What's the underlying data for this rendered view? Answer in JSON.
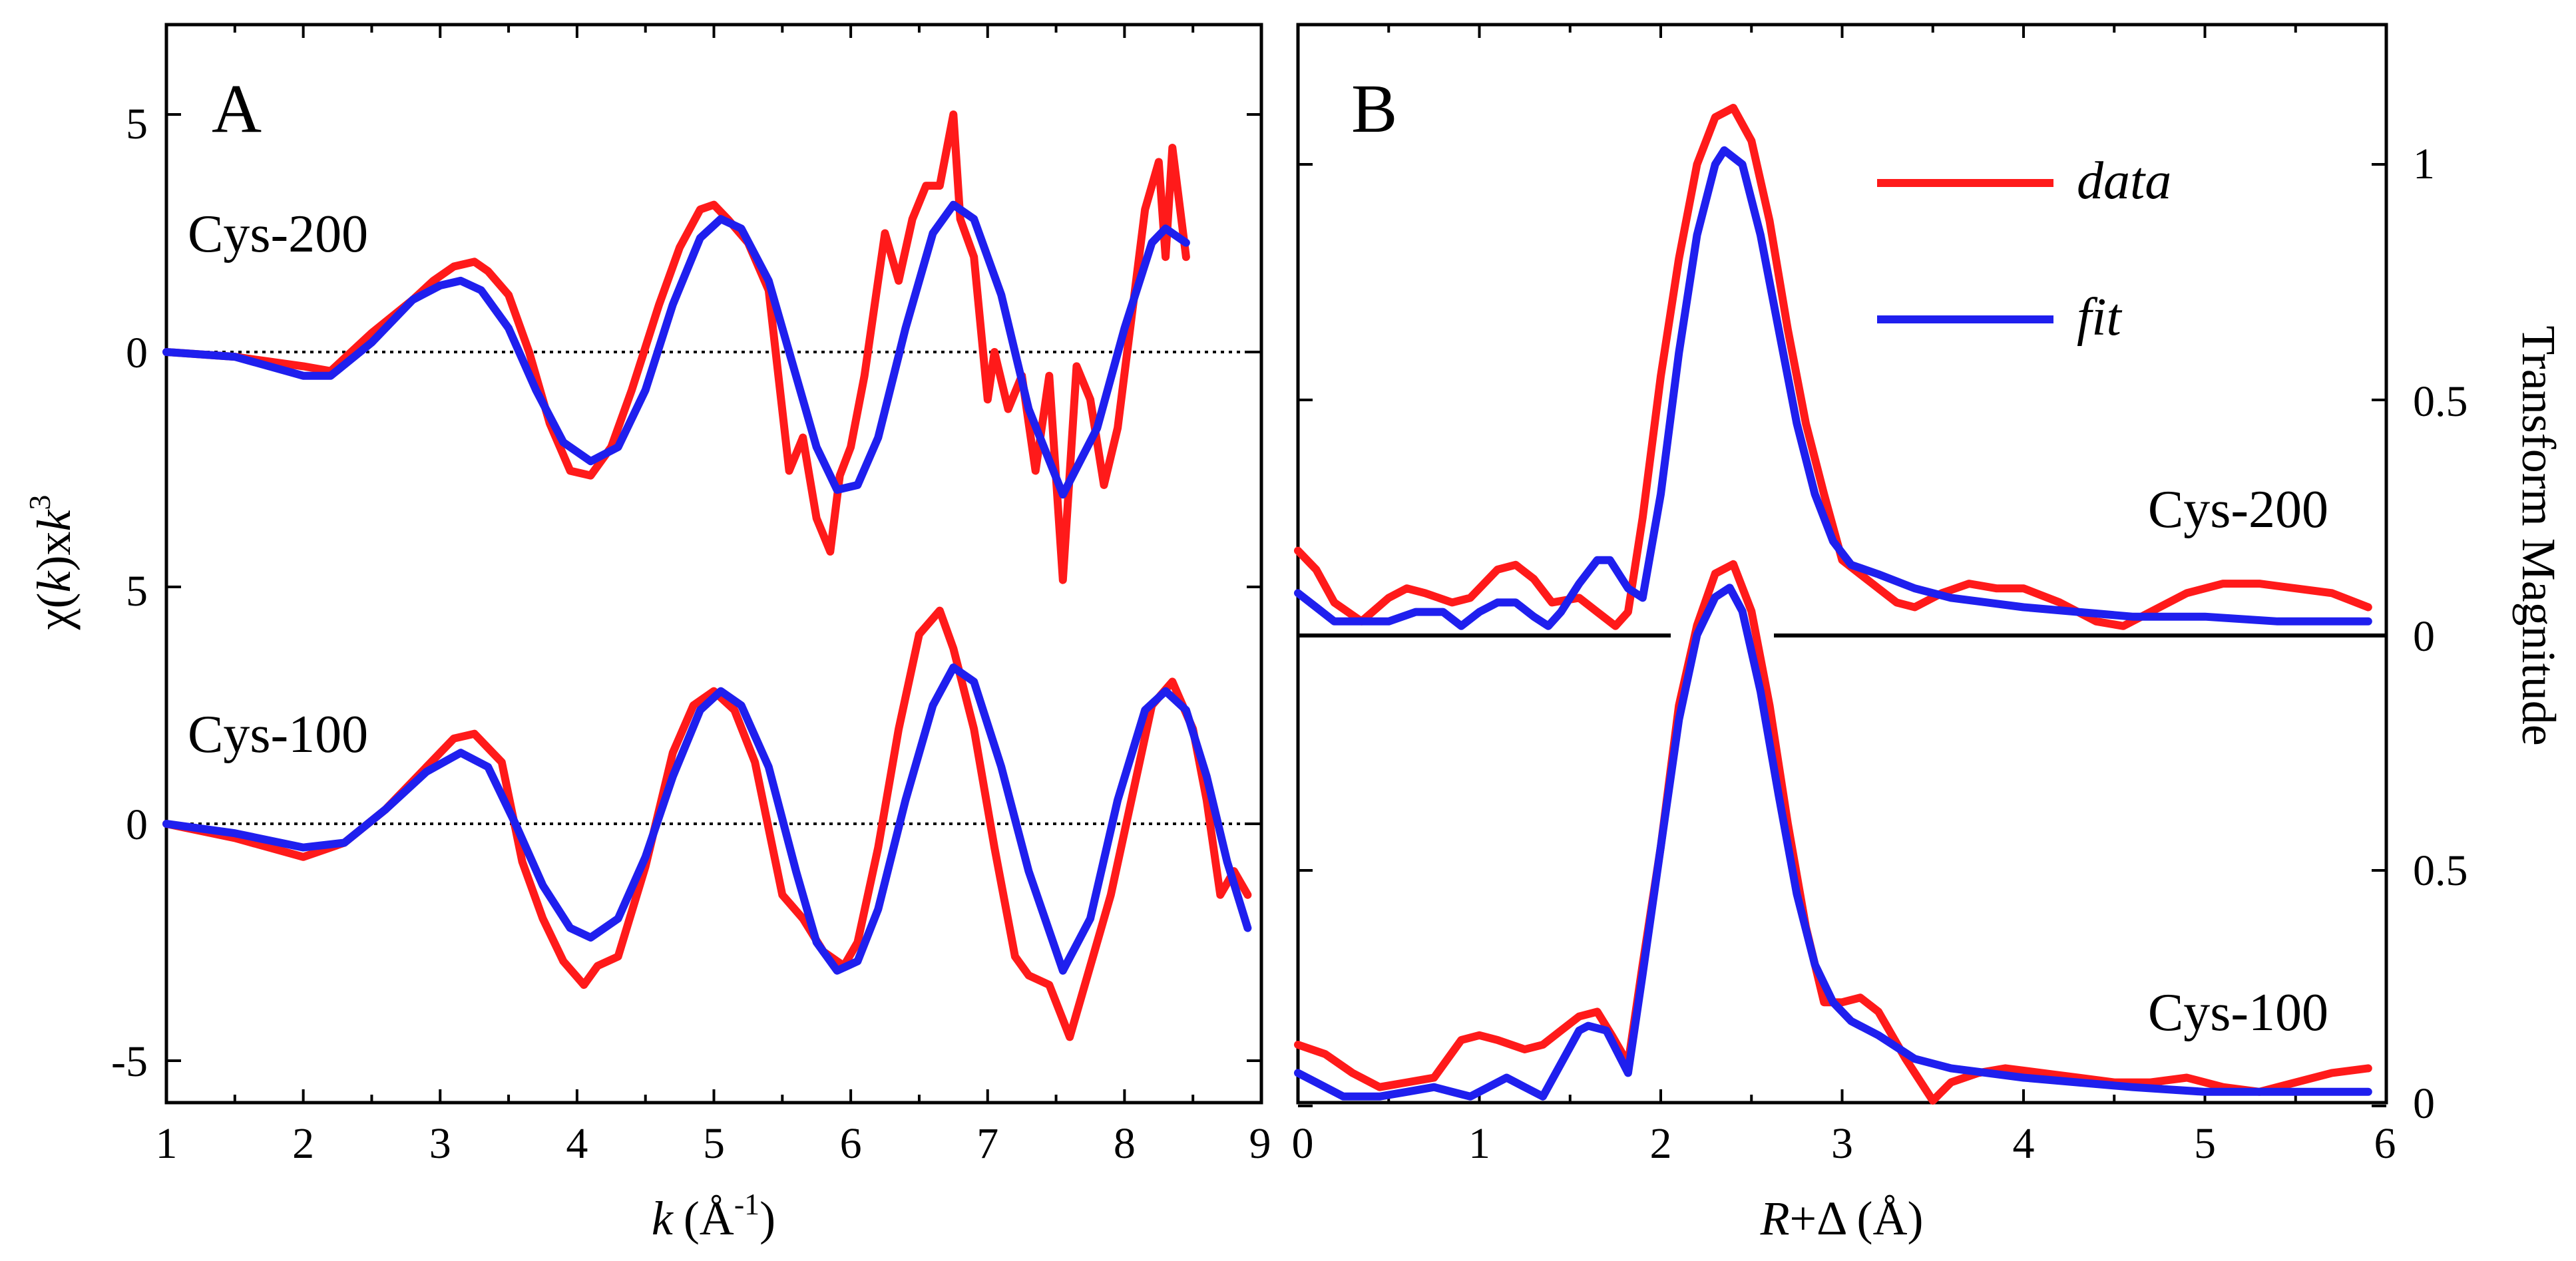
{
  "chart_data": [
    {
      "panel": "A",
      "type": "line",
      "panel_label": "A",
      "xlabel_prefix": "k",
      "xlabel_suffix": "(Å",
      "xlabel_exp": "-1",
      "xlabel_close": ")",
      "ylabel_chi": "χ(",
      "ylabel_k": "k",
      "ylabel_mid": ")x",
      "ylabel_k2": "k",
      "ylabel_exp": "3",
      "xlim": [
        1,
        9
      ],
      "x_ticks": [
        "1",
        "2",
        "3",
        "4",
        "5",
        "6",
        "7",
        "8",
        "9"
      ],
      "tracks": [
        {
          "label": "Cys-200",
          "y_ticks": [
            "5",
            "0"
          ],
          "series": [
            {
              "name": "data",
              "color": "#ff1a1a",
              "x": [
                1.0,
                1.5,
                2.0,
                2.2,
                2.5,
                2.8,
                2.95,
                3.1,
                3.25,
                3.35,
                3.5,
                3.65,
                3.8,
                3.95,
                4.1,
                4.25,
                4.4,
                4.6,
                4.75,
                4.9,
                5.0,
                5.1,
                5.25,
                5.4,
                5.55,
                5.65,
                5.75,
                5.85,
                5.92,
                6.0,
                6.1,
                6.25,
                6.35,
                6.45,
                6.55,
                6.65,
                6.75,
                6.8,
                6.9,
                7.0,
                7.05,
                7.15,
                7.25,
                7.35,
                7.45,
                7.55,
                7.65,
                7.75,
                7.85,
                7.95,
                8.05,
                8.15,
                8.25,
                8.3,
                8.35,
                8.45
              ],
              "y": [
                0.0,
                -0.1,
                -0.3,
                -0.4,
                0.4,
                1.1,
                1.5,
                1.8,
                1.9,
                1.7,
                1.2,
                0.0,
                -1.5,
                -2.5,
                -2.6,
                -2.0,
                -0.8,
                1.0,
                2.2,
                3.0,
                3.1,
                2.8,
                2.3,
                1.3,
                -2.5,
                -1.8,
                -3.5,
                -4.2,
                -2.6,
                -2.0,
                -0.5,
                2.5,
                1.5,
                2.8,
                3.5,
                3.5,
                5.0,
                2.8,
                2.0,
                -1.0,
                0.0,
                -1.2,
                -0.5,
                -2.5,
                -0.5,
                -4.8,
                -0.3,
                -1.0,
                -2.8,
                -1.6,
                0.7,
                3.0,
                4.0,
                2.0,
                4.3,
                2.0
              ]
            },
            {
              "name": "fit",
              "color": "#1f1fee",
              "x": [
                1.0,
                1.5,
                2.0,
                2.2,
                2.5,
                2.8,
                3.0,
                3.15,
                3.3,
                3.5,
                3.7,
                3.9,
                4.1,
                4.3,
                4.5,
                4.7,
                4.9,
                5.05,
                5.2,
                5.4,
                5.6,
                5.75,
                5.9,
                6.05,
                6.2,
                6.4,
                6.6,
                6.75,
                6.9,
                7.1,
                7.3,
                7.55,
                7.8,
                8.0,
                8.2,
                8.3,
                8.45
              ],
              "y": [
                0.0,
                -0.1,
                -0.5,
                -0.5,
                0.2,
                1.1,
                1.4,
                1.5,
                1.3,
                0.5,
                -0.8,
                -1.9,
                -2.3,
                -2.0,
                -0.8,
                1.0,
                2.4,
                2.8,
                2.6,
                1.5,
                -0.5,
                -2.0,
                -2.9,
                -2.8,
                -1.8,
                0.5,
                2.5,
                3.1,
                2.8,
                1.2,
                -1.2,
                -3.0,
                -1.6,
                0.5,
                2.3,
                2.6,
                2.3
              ]
            }
          ]
        },
        {
          "label": "Cys-100",
          "y_ticks": [
            "5",
            "0",
            "-5"
          ],
          "series": [
            {
              "name": "data",
              "color": "#ff1a1a",
              "x": [
                1.0,
                1.5,
                2.0,
                2.3,
                2.6,
                2.9,
                3.1,
                3.25,
                3.45,
                3.6,
                3.75,
                3.9,
                4.05,
                4.15,
                4.3,
                4.5,
                4.7,
                4.85,
                5.0,
                5.15,
                5.3,
                5.5,
                5.65,
                5.8,
                5.95,
                6.05,
                6.2,
                6.35,
                6.5,
                6.65,
                6.75,
                6.9,
                7.05,
                7.2,
                7.3,
                7.45,
                7.6,
                7.75,
                7.9,
                8.05,
                8.2,
                8.35,
                8.5,
                8.6,
                8.7,
                8.8,
                8.9
              ],
              "y": [
                0.0,
                -0.3,
                -0.7,
                -0.4,
                0.3,
                1.2,
                1.8,
                1.9,
                1.3,
                -0.8,
                -2.0,
                -2.9,
                -3.4,
                -3.0,
                -2.8,
                -0.9,
                1.5,
                2.5,
                2.8,
                2.4,
                1.3,
                -1.5,
                -2.0,
                -2.7,
                -3.0,
                -2.5,
                -0.5,
                2.0,
                4.0,
                4.5,
                3.7,
                2.0,
                -0.5,
                -2.8,
                -3.2,
                -3.4,
                -4.5,
                -3.0,
                -1.5,
                0.5,
                2.5,
                3.0,
                2.0,
                0.5,
                -1.5,
                -1.0,
                -1.5
              ]
            },
            {
              "name": "fit",
              "color": "#1f1fee",
              "x": [
                1.0,
                1.5,
                2.0,
                2.3,
                2.6,
                2.9,
                3.15,
                3.35,
                3.55,
                3.75,
                3.95,
                4.1,
                4.3,
                4.5,
                4.7,
                4.9,
                5.05,
                5.2,
                5.4,
                5.6,
                5.75,
                5.9,
                6.05,
                6.2,
                6.4,
                6.6,
                6.75,
                6.9,
                7.1,
                7.3,
                7.55,
                7.75,
                7.95,
                8.15,
                8.3,
                8.45,
                8.6,
                8.75,
                8.9
              ],
              "y": [
                0.0,
                -0.2,
                -0.5,
                -0.4,
                0.3,
                1.1,
                1.5,
                1.2,
                0.0,
                -1.3,
                -2.2,
                -2.4,
                -2.0,
                -0.7,
                1.0,
                2.4,
                2.8,
                2.5,
                1.2,
                -1.0,
                -2.5,
                -3.1,
                -2.9,
                -1.8,
                0.5,
                2.5,
                3.3,
                3.0,
                1.2,
                -1.0,
                -3.1,
                -2.0,
                0.5,
                2.4,
                2.8,
                2.4,
                1.0,
                -0.8,
                -2.2
              ]
            }
          ]
        }
      ]
    },
    {
      "panel": "B",
      "type": "line",
      "panel_label": "B",
      "xlabel_R": "R",
      "xlabel_rest": "+Δ (Å)",
      "ylabel": "Transform Magnitude",
      "xlim": [
        0,
        6
      ],
      "x_ticks": [
        "0",
        "1",
        "2",
        "3",
        "4",
        "5",
        "6"
      ],
      "legend": {
        "data_label": "data",
        "fit_label": "fit",
        "placement": "top-right"
      },
      "tracks": [
        {
          "label": "Cys-200",
          "y_ticks": [
            "1",
            "0.5",
            "0"
          ],
          "series": [
            {
              "name": "data",
              "color": "#ff1a1a",
              "x": [
                0.0,
                0.1,
                0.2,
                0.35,
                0.5,
                0.6,
                0.7,
                0.85,
                0.95,
                1.1,
                1.2,
                1.3,
                1.4,
                1.55,
                1.65,
                1.75,
                1.82,
                1.9,
                2.0,
                2.1,
                2.2,
                2.3,
                2.4,
                2.5,
                2.6,
                2.7,
                2.8,
                2.9,
                3.0,
                3.1,
                3.2,
                3.3,
                3.4,
                3.55,
                3.7,
                3.85,
                4.0,
                4.2,
                4.4,
                4.55,
                4.7,
                4.9,
                5.1,
                5.3,
                5.5,
                5.7,
                5.9
              ],
              "y": [
                0.18,
                0.14,
                0.07,
                0.03,
                0.08,
                0.1,
                0.09,
                0.07,
                0.08,
                0.14,
                0.15,
                0.12,
                0.07,
                0.08,
                0.05,
                0.02,
                0.05,
                0.25,
                0.55,
                0.8,
                1.0,
                1.1,
                1.12,
                1.05,
                0.88,
                0.65,
                0.45,
                0.3,
                0.16,
                0.13,
                0.1,
                0.07,
                0.06,
                0.09,
                0.11,
                0.1,
                0.1,
                0.07,
                0.03,
                0.02,
                0.05,
                0.09,
                0.11,
                0.11,
                0.1,
                0.09,
                0.06
              ]
            },
            {
              "name": "fit",
              "color": "#1f1fee",
              "x": [
                0.0,
                0.1,
                0.2,
                0.35,
                0.5,
                0.65,
                0.8,
                0.9,
                1.0,
                1.1,
                1.2,
                1.3,
                1.38,
                1.45,
                1.55,
                1.65,
                1.72,
                1.82,
                1.9,
                2.0,
                2.1,
                2.2,
                2.3,
                2.35,
                2.45,
                2.55,
                2.65,
                2.75,
                2.85,
                2.95,
                3.05,
                3.2,
                3.4,
                3.6,
                3.8,
                4.0,
                4.3,
                4.6,
                5.0,
                5.4,
                5.9
              ],
              "y": [
                0.09,
                0.06,
                0.03,
                0.03,
                0.03,
                0.05,
                0.05,
                0.02,
                0.05,
                0.07,
                0.07,
                0.04,
                0.02,
                0.05,
                0.11,
                0.16,
                0.16,
                0.1,
                0.08,
                0.3,
                0.6,
                0.85,
                1.0,
                1.03,
                1.0,
                0.85,
                0.65,
                0.45,
                0.3,
                0.2,
                0.15,
                0.13,
                0.1,
                0.08,
                0.07,
                0.06,
                0.05,
                0.04,
                0.04,
                0.03,
                0.03
              ]
            }
          ]
        },
        {
          "label": "Cys-100",
          "y_ticks": [
            "0.5",
            "0"
          ],
          "series": [
            {
              "name": "data",
              "color": "#ff1a1a",
              "x": [
                0.0,
                0.15,
                0.3,
                0.45,
                0.6,
                0.75,
                0.9,
                1.0,
                1.1,
                1.25,
                1.35,
                1.45,
                1.55,
                1.65,
                1.73,
                1.82,
                1.9,
                2.0,
                2.1,
                2.2,
                2.3,
                2.4,
                2.5,
                2.6,
                2.7,
                2.8,
                2.9,
                3.0,
                3.1,
                3.2,
                3.35,
                3.5,
                3.6,
                3.75,
                3.9,
                4.1,
                4.3,
                4.5,
                4.7,
                4.9,
                5.1,
                5.3,
                5.5,
                5.7,
                5.9
              ],
              "y": [
                0.13,
                0.11,
                0.07,
                0.04,
                0.05,
                0.06,
                0.14,
                0.15,
                0.14,
                0.12,
                0.13,
                0.16,
                0.19,
                0.2,
                0.15,
                0.09,
                0.3,
                0.55,
                0.85,
                1.02,
                1.13,
                1.15,
                1.05,
                0.85,
                0.6,
                0.38,
                0.22,
                0.22,
                0.23,
                0.2,
                0.1,
                0.01,
                0.05,
                0.07,
                0.08,
                0.07,
                0.06,
                0.05,
                0.05,
                0.06,
                0.04,
                0.03,
                0.05,
                0.07,
                0.08
              ]
            },
            {
              "name": "fit",
              "color": "#1f1fee",
              "x": [
                0.0,
                0.1,
                0.25,
                0.45,
                0.6,
                0.75,
                0.85,
                0.95,
                1.05,
                1.15,
                1.25,
                1.35,
                1.45,
                1.55,
                1.6,
                1.7,
                1.82,
                1.9,
                2.0,
                2.1,
                2.2,
                2.3,
                2.38,
                2.45,
                2.55,
                2.65,
                2.75,
                2.85,
                2.95,
                3.05,
                3.2,
                3.4,
                3.6,
                3.8,
                4.0,
                4.3,
                4.6,
                5.0,
                5.4,
                5.9
              ],
              "y": [
                0.07,
                0.05,
                0.02,
                0.02,
                0.03,
                0.04,
                0.03,
                0.02,
                0.04,
                0.06,
                0.04,
                0.02,
                0.09,
                0.16,
                0.17,
                0.16,
                0.07,
                0.28,
                0.55,
                0.82,
                1.0,
                1.08,
                1.1,
                1.05,
                0.88,
                0.66,
                0.45,
                0.3,
                0.22,
                0.18,
                0.15,
                0.1,
                0.08,
                0.07,
                0.06,
                0.05,
                0.04,
                0.03,
                0.03,
                0.03
              ]
            }
          ]
        }
      ]
    }
  ]
}
